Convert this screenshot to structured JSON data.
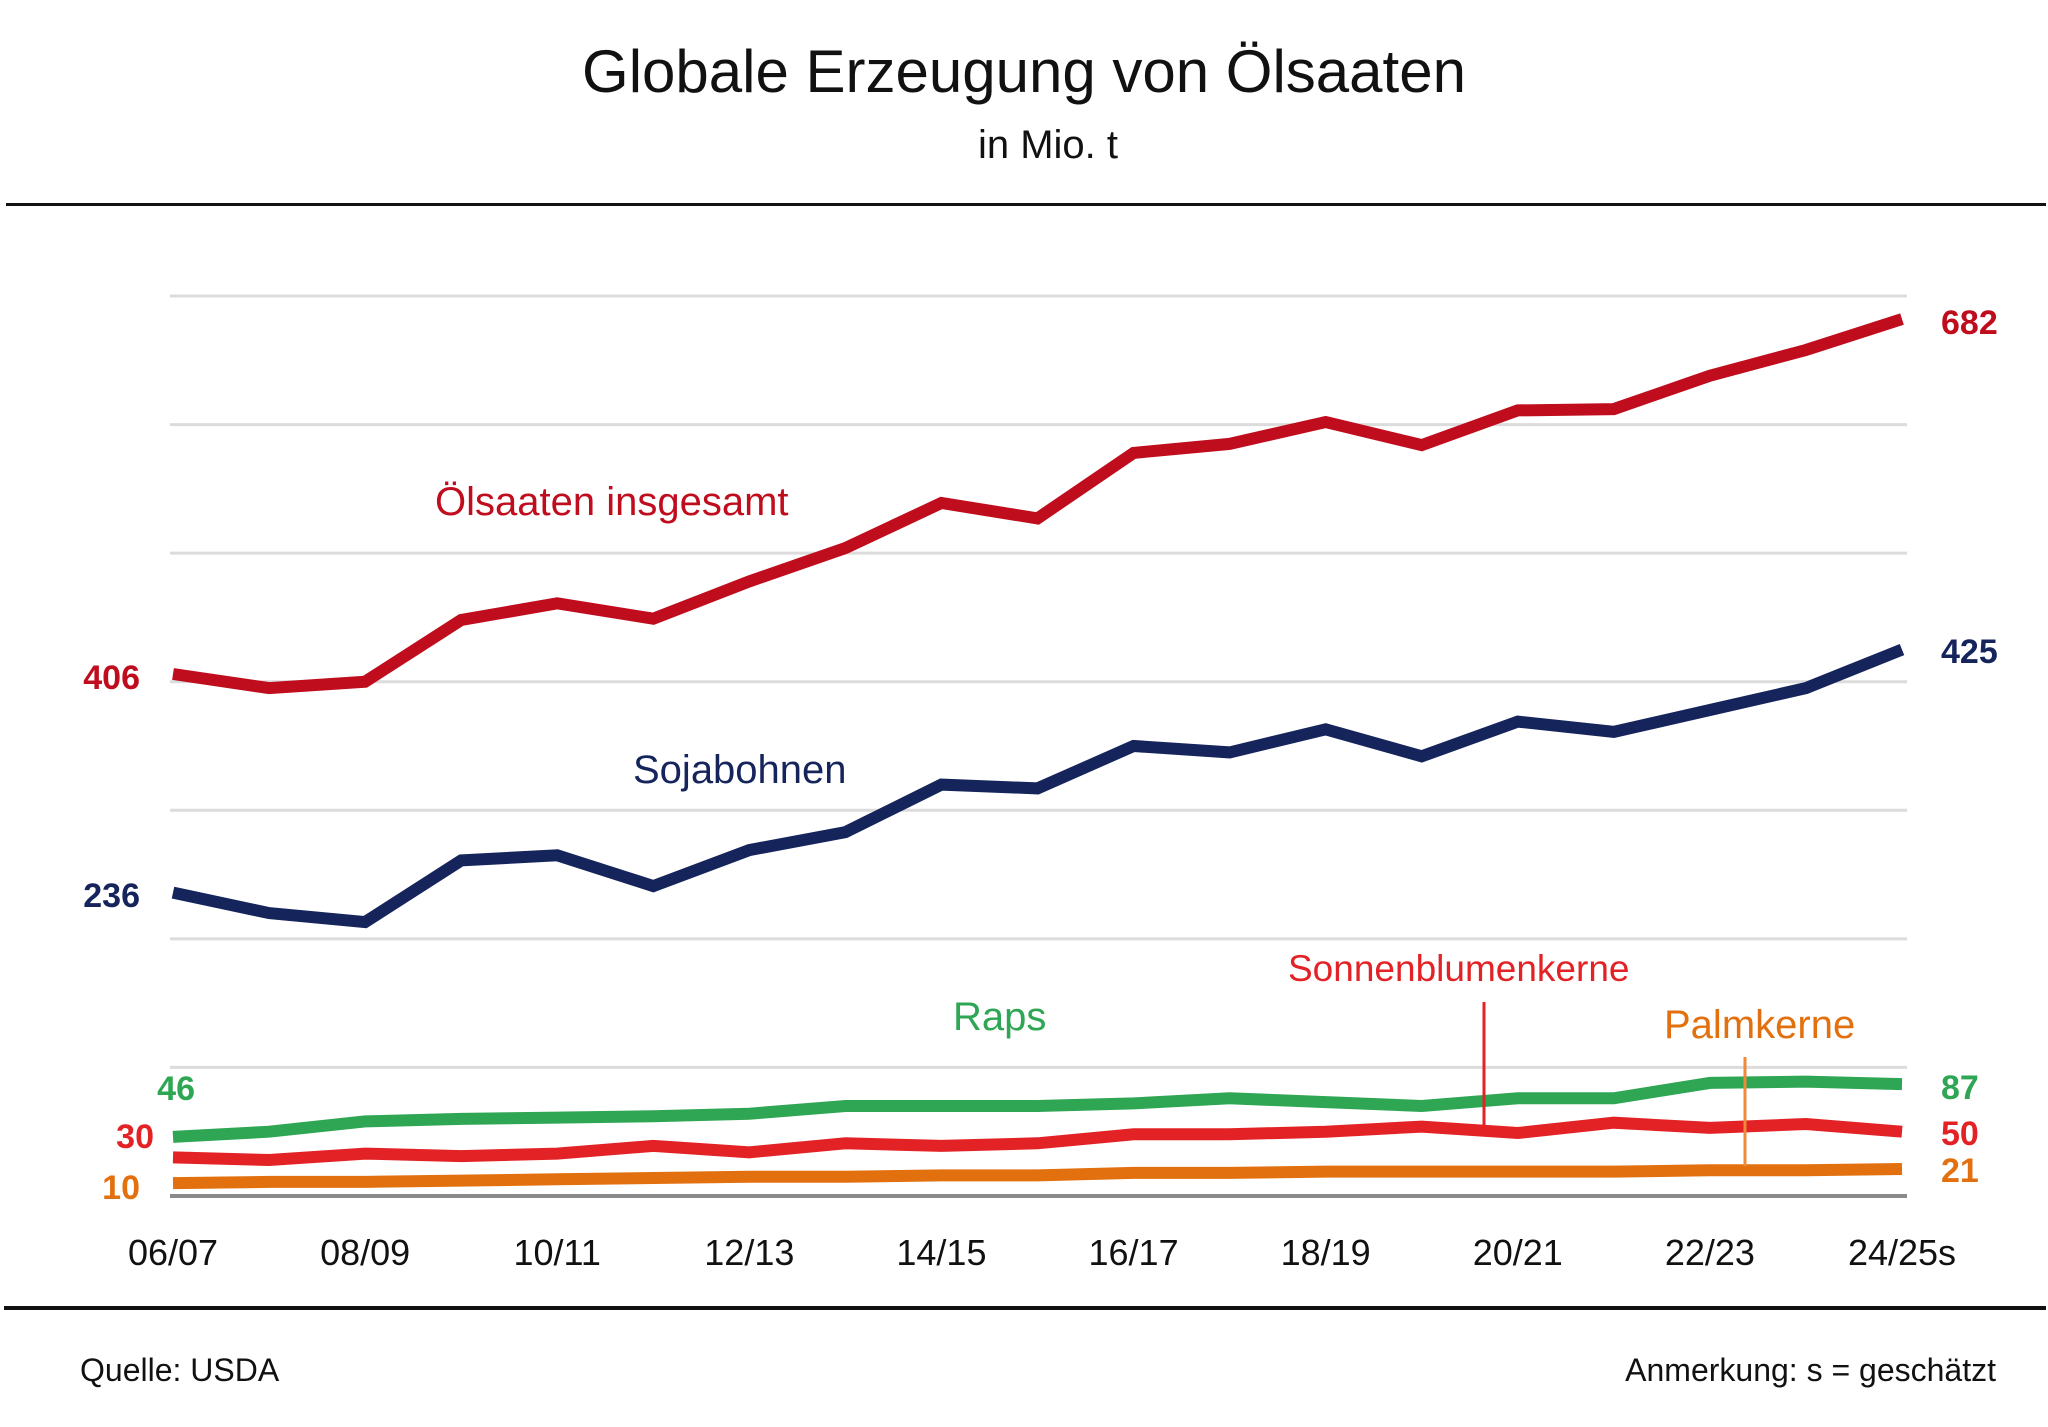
{
  "chart_data": {
    "type": "line",
    "title": "Globale Erzeugung von Ölsaaten",
    "subtitle": "in Mio. t",
    "xlabel": "",
    "ylabel": "",
    "ylim": [
      0,
      700
    ],
    "y_gridlines": [
      0,
      100,
      200,
      300,
      400,
      500,
      600,
      700
    ],
    "grid": true,
    "x": [
      "06/07",
      "07/08",
      "08/09",
      "09/10",
      "10/11",
      "11/12",
      "12/13",
      "13/14",
      "14/15",
      "15/16",
      "16/17",
      "17/18",
      "18/19",
      "19/20",
      "20/21",
      "21/22",
      "22/23",
      "23/24",
      "24/25s"
    ],
    "x_tick_labels": [
      "06/07",
      "08/09",
      "10/11",
      "12/13",
      "14/15",
      "16/17",
      "18/19",
      "20/21",
      "22/23",
      "24/25s"
    ],
    "series": [
      {
        "key": "total",
        "name": "Ölsaaten insgesamt",
        "color": "#C00D1E",
        "values": [
          406,
          395,
          400,
          448,
          461,
          449,
          478,
          504,
          539,
          527,
          578,
          585,
          602,
          584,
          611,
          612,
          638,
          658,
          682
        ],
        "start_label": "406",
        "end_label": "682"
      },
      {
        "key": "soy",
        "name": "Sojabohnen",
        "color": "#15245B",
        "values": [
          236,
          220,
          213,
          261,
          265,
          241,
          269,
          283,
          320,
          317,
          350,
          345,
          363,
          342,
          369,
          361,
          378,
          395,
          425
        ],
        "start_label": "236",
        "end_label": "425"
      },
      {
        "key": "rapeseed",
        "name": "Raps",
        "color": "#2EA653",
        "values": [
          46,
          50,
          58,
          60,
          61,
          62,
          64,
          70,
          70,
          70,
          72,
          76,
          73,
          70,
          76,
          76,
          88,
          89,
          87
        ],
        "start_label": "46",
        "end_label": "87"
      },
      {
        "key": "sunflower",
        "name": "Sonnenblumenkerne",
        "color": "#E32226",
        "values": [
          30,
          28,
          33,
          31,
          33,
          39,
          34,
          41,
          39,
          41,
          48,
          48,
          50,
          54,
          49,
          57,
          53,
          56,
          50
        ],
        "start_label": "30",
        "end_label": "50"
      },
      {
        "key": "palm",
        "name": "Palmkerne",
        "color": "#E2700E",
        "values": [
          10,
          11,
          11,
          12,
          13,
          14,
          15,
          15,
          16,
          16,
          18,
          18,
          19,
          19,
          19,
          19,
          20,
          20,
          21
        ],
        "start_label": "10",
        "end_label": "21"
      }
    ],
    "annotations": [
      {
        "text": "Ölsaaten insgesamt",
        "series": "total"
      },
      {
        "text": "Sojabohnen",
        "series": "soy"
      },
      {
        "text": "Raps",
        "series": "rapeseed"
      },
      {
        "text": "Sonnenblumenkerne",
        "series": "sunflower",
        "pointer_at": "20/21"
      },
      {
        "text": "Palmkerne",
        "series": "palm",
        "pointer_at": "23/24"
      }
    ]
  },
  "footer": {
    "source": "Quelle: USDA",
    "note": "Anmerkung: s = geschätzt"
  }
}
